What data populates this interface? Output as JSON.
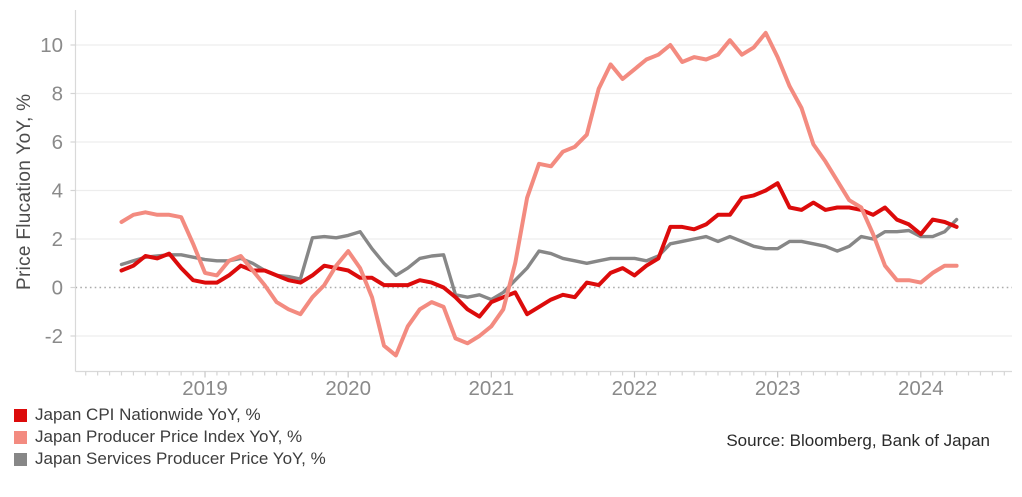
{
  "chart_data": {
    "type": "line",
    "title": "",
    "xlabel": "",
    "ylabel": "Price Flucation YoY, %",
    "x_start": "2018-06",
    "x_end": "2024-04",
    "x_frequency": "monthly",
    "x_tick_labels": [
      "2019",
      "2020",
      "2021",
      "2022",
      "2023",
      "2024"
    ],
    "y_ticks": [
      -2,
      0,
      2,
      4,
      6,
      8,
      10
    ],
    "ylim": [
      -3.5,
      11.5
    ],
    "grid": "horizontal",
    "zero_line_style": "dotted",
    "legend_position": "bottom-left",
    "series": [
      {
        "name": "Japan CPI Nationwide YoY, %",
        "color": "#dc0b0b",
        "values": [
          0.7,
          0.9,
          1.3,
          1.2,
          1.4,
          0.8,
          0.3,
          0.2,
          0.2,
          0.5,
          0.9,
          0.7,
          0.7,
          0.5,
          0.3,
          0.2,
          0.5,
          0.9,
          0.8,
          0.7,
          0.4,
          0.4,
          0.1,
          0.1,
          0.1,
          0.3,
          0.2,
          0.0,
          -0.4,
          -0.9,
          -1.2,
          -0.6,
          -0.4,
          -0.2,
          -1.1,
          -0.8,
          -0.5,
          -0.3,
          -0.4,
          0.2,
          0.1,
          0.6,
          0.8,
          0.5,
          0.9,
          1.2,
          2.5,
          2.5,
          2.4,
          2.6,
          3.0,
          3.0,
          3.7,
          3.8,
          4.0,
          4.3,
          3.3,
          3.2,
          3.5,
          3.2,
          3.3,
          3.3,
          3.2,
          3.0,
          3.3,
          2.8,
          2.6,
          2.2,
          2.8,
          2.7,
          2.5
        ]
      },
      {
        "name": "Japan Producer Price Index YoY, %",
        "color": "#f38b80",
        "values": [
          2.7,
          3.0,
          3.1,
          3.0,
          3.0,
          2.9,
          1.8,
          0.6,
          0.5,
          1.1,
          1.3,
          0.7,
          0.1,
          -0.6,
          -0.9,
          -1.1,
          -0.4,
          0.1,
          0.9,
          1.5,
          0.8,
          -0.4,
          -2.4,
          -2.8,
          -1.6,
          -0.9,
          -0.6,
          -0.8,
          -2.1,
          -2.3,
          -2.0,
          -1.6,
          -0.9,
          1.0,
          3.7,
          5.1,
          5.0,
          5.6,
          5.8,
          6.3,
          8.2,
          9.2,
          8.6,
          9.0,
          9.4,
          9.6,
          10.0,
          9.3,
          9.5,
          9.4,
          9.6,
          10.2,
          9.6,
          9.9,
          10.5,
          9.5,
          8.3,
          7.4,
          5.9,
          5.2,
          4.4,
          3.6,
          3.3,
          2.2,
          0.9,
          0.3,
          0.3,
          0.2,
          0.6,
          0.9,
          0.9
        ]
      },
      {
        "name": "Japan Services Producer Price YoY, %",
        "color": "#878787",
        "values": [
          0.95,
          1.1,
          1.25,
          1.3,
          1.35,
          1.35,
          1.25,
          1.15,
          1.1,
          1.1,
          1.2,
          1.0,
          0.7,
          0.5,
          0.45,
          0.35,
          2.05,
          2.1,
          2.05,
          2.15,
          2.3,
          1.6,
          1.0,
          0.5,
          0.8,
          1.2,
          1.3,
          1.35,
          -0.3,
          -0.4,
          -0.3,
          -0.5,
          -0.2,
          0.3,
          0.8,
          1.5,
          1.4,
          1.2,
          1.1,
          1.0,
          1.1,
          1.2,
          1.2,
          1.2,
          1.1,
          1.3,
          1.8,
          1.9,
          2.0,
          2.1,
          1.9,
          2.1,
          1.9,
          1.7,
          1.6,
          1.6,
          1.9,
          1.9,
          1.8,
          1.7,
          1.5,
          1.7,
          2.1,
          2.0,
          2.3,
          2.3,
          2.35,
          2.1,
          2.1,
          2.3,
          2.8
        ]
      }
    ],
    "colors": {
      "grid": "#ededed",
      "zero_line": "#ababab",
      "axis": "#d9d9d9",
      "tick": "#d4d4d4",
      "tick_label": "#8a8a8a",
      "axis_title": "#4d4d4d"
    }
  },
  "legend": {
    "items": [
      {
        "label": "Japan CPI Nationwide YoY, %"
      },
      {
        "label": "Japan Producer Price Index YoY, %"
      },
      {
        "label": "Japan Services Producer Price YoY, %"
      }
    ]
  },
  "source": "Source: Bloomberg, Bank of Japan"
}
